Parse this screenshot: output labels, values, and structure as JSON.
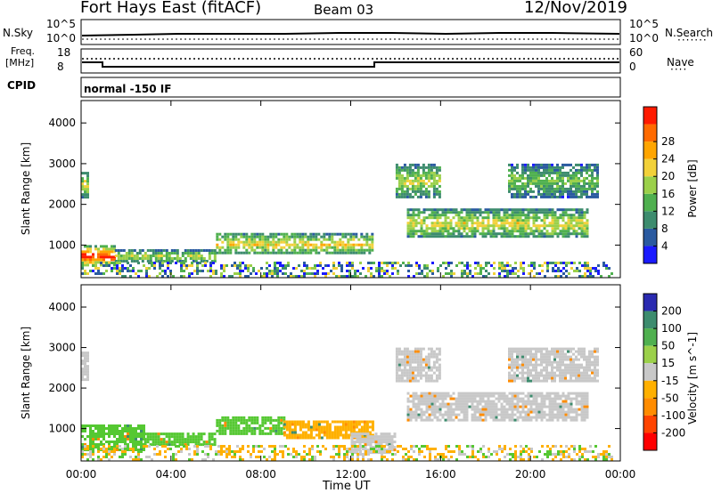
{
  "header": {
    "title": "Fort Hays East (fitACF)",
    "beam": "Beam 03",
    "date": "12/Nov/2019"
  },
  "top_panel": {
    "left_label": "N.Sky",
    "left_ticks": [
      "10^5",
      "10^0"
    ],
    "right_ticks": [
      "10^5",
      "10^0"
    ],
    "right_label": "N.Search"
  },
  "freq_panel": {
    "left_label_1": "Freq.",
    "left_label_2": "[MHz]",
    "left_ticks": [
      "18",
      "8"
    ],
    "right_ticks": [
      "60",
      "0"
    ],
    "right_label": "Nave"
  },
  "cpid_panel": {
    "label": "CPID",
    "text": "normal -150 IF"
  },
  "chart_data": [
    {
      "type": "heatmap",
      "name": "power",
      "ylabel": "Slant Range [km]",
      "yticks": [
        "1000",
        "2000",
        "3000",
        "4000"
      ],
      "ylim": [
        200,
        4550
      ],
      "xlim": [
        0,
        24
      ],
      "colorbar": {
        "label": "Power [dB]",
        "ticks": [
          "4",
          "8",
          "12",
          "16",
          "20",
          "24",
          "28"
        ],
        "colors": [
          "#1a1aff",
          "#2a5aa0",
          "#3d8c6e",
          "#4fb04f",
          "#9bd04a",
          "#f2d13a",
          "#ffa500",
          "#ff6a00",
          "#ff1a00"
        ]
      },
      "echoes": [
        {
          "t0": 0.0,
          "t1": 0.3,
          "r0": 2200,
          "r1": 2800,
          "level": 0.6
        },
        {
          "t0": 0.0,
          "t1": 1.5,
          "r0": 500,
          "r1": 1000,
          "level": 0.95
        },
        {
          "t0": 1.5,
          "t1": 6.0,
          "r0": 600,
          "r1": 900,
          "level": 0.55
        },
        {
          "t0": 6.0,
          "t1": 13.0,
          "r0": 800,
          "r1": 1300,
          "level": 0.65
        },
        {
          "t0": 14.0,
          "t1": 16.0,
          "r0": 2200,
          "r1": 3000,
          "level": 0.55
        },
        {
          "t0": 14.5,
          "t1": 22.5,
          "r0": 1200,
          "r1": 1900,
          "level": 0.6
        },
        {
          "t0": 19.0,
          "t1": 23.0,
          "r0": 2200,
          "r1": 3000,
          "level": 0.45
        }
      ]
    },
    {
      "type": "heatmap",
      "name": "velocity",
      "ylabel": "Slant Range [km]",
      "yticks": [
        "1000",
        "2000",
        "3000",
        "4000"
      ],
      "ylim": [
        200,
        4550
      ],
      "xlim": [
        0,
        24
      ],
      "xticks": [
        "00:00",
        "04:00",
        "08:00",
        "12:00",
        "16:00",
        "20:00",
        "00:00"
      ],
      "xlabel": "Time UT",
      "colorbar": {
        "label": "Velocity [m s^-1]",
        "ticks": [
          "200",
          "100",
          "50",
          "15",
          "-15",
          "-50",
          "-100",
          "-200"
        ],
        "colors": [
          "#2a2ab0",
          "#3d8c6e",
          "#4fb04f",
          "#9bd04a",
          "#c8c8c8",
          "#ffb000",
          "#ff8c00",
          "#ff4400",
          "#ff0000"
        ]
      },
      "echoes": [
        {
          "t0": 0.0,
          "t1": 0.3,
          "r0": 2200,
          "r1": 2900,
          "vel": "gray"
        },
        {
          "t0": 0.0,
          "t1": 2.8,
          "r0": 500,
          "r1": 1100,
          "vel": "green"
        },
        {
          "t0": 2.8,
          "t1": 6.0,
          "r0": 600,
          "r1": 900,
          "vel": "green"
        },
        {
          "t0": 6.0,
          "t1": 9.0,
          "r0": 850,
          "r1": 1300,
          "vel": "green"
        },
        {
          "t0": 9.0,
          "t1": 13.0,
          "r0": 800,
          "r1": 1200,
          "vel": "orange"
        },
        {
          "t0": 12.0,
          "t1": 14.0,
          "r0": 400,
          "r1": 900,
          "vel": "gray"
        },
        {
          "t0": 14.0,
          "t1": 16.0,
          "r0": 2200,
          "r1": 3000,
          "vel": "gray"
        },
        {
          "t0": 14.5,
          "t1": 22.5,
          "r0": 1200,
          "r1": 1900,
          "vel": "gray"
        },
        {
          "t0": 19.0,
          "t1": 23.0,
          "r0": 2200,
          "r1": 3000,
          "vel": "gray"
        }
      ]
    }
  ]
}
